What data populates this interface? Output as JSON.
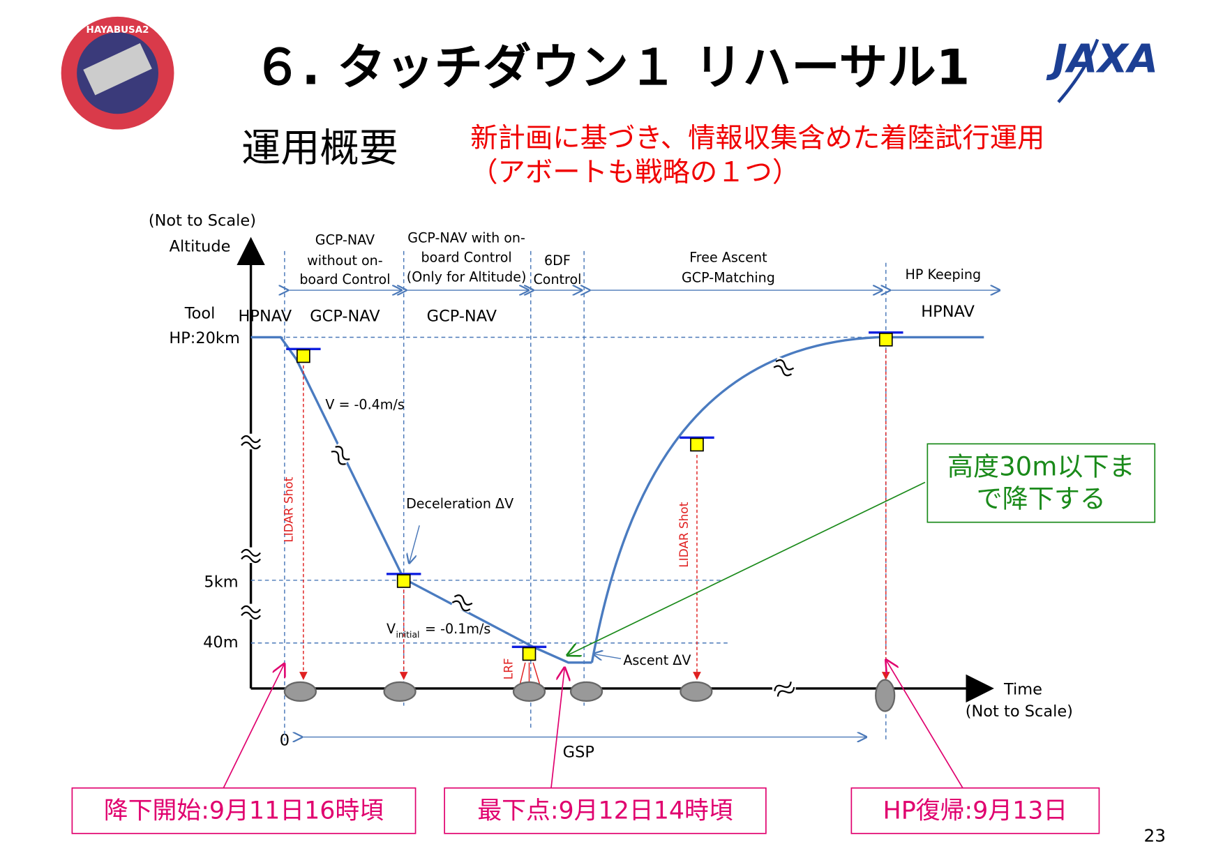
{
  "header": {
    "title": "６. タッチダウン１ リハーサル1",
    "mission_logo": "HAYABUSA2",
    "agency_logo": "JAXA"
  },
  "section": "運用概要",
  "objective": [
    "新計画に基づき、情報収集含めた着陸試行運用",
    "（アボートも戦略の１つ）"
  ],
  "diagram": {
    "y_axis": {
      "note": "(Not to Scale)",
      "label": "Altitude"
    },
    "x_axis": {
      "label": "Time",
      "note": "(Not to Scale)",
      "origin": "0"
    },
    "levels": [
      "Tool",
      "HP:20km",
      "5km",
      "40m"
    ],
    "phases": [
      {
        "description": [
          "GCP-NAV",
          "without on-",
          "board Control"
        ]
      },
      {
        "description": [
          "GCP-NAV with on-",
          "board Control",
          "(Only for Altitude)"
        ]
      },
      {
        "description": [
          "6DF",
          "Control"
        ]
      },
      {
        "description": [
          "Free Ascent",
          "GCP-Matching"
        ]
      },
      {
        "description": [
          "HP Keeping"
        ]
      }
    ],
    "modes": [
      "HPNAV",
      "GCP-NAV",
      "GCP-NAV",
      "HPNAV"
    ],
    "annotations": {
      "descent_rate": "V = -0.4m/s",
      "deceleration": "Deceleration ΔV",
      "initial_rate": [
        "V",
        "initial",
        "= -0.1m/s"
      ],
      "ascent": "Ascent ΔV",
      "lidar": [
        "LIDAR Shot",
        "LIDAR Shot"
      ],
      "lrf": "LRF",
      "gsp": "GSP"
    }
  },
  "callouts": {
    "target": [
      "高度30m以下ま",
      "で降下する"
    ],
    "events": [
      "降下開始:9月11日16時頃",
      "最下点:9月12日14時頃",
      "HP復帰:9月13日"
    ]
  },
  "page_number": "23"
}
